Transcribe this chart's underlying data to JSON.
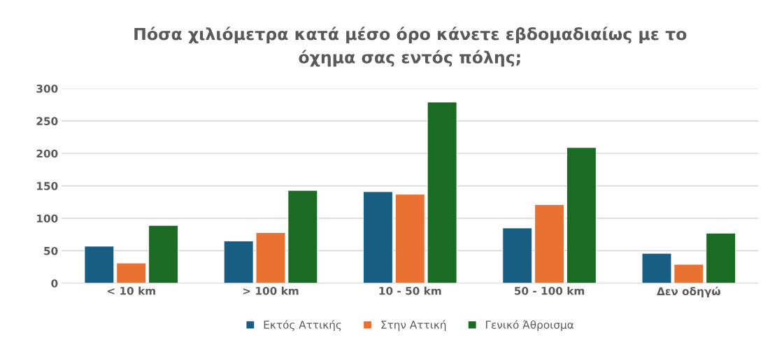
{
  "chart_data": {
    "type": "bar",
    "title": "Πόσα χιλιόμετρα κατά μέσο όρο κάνετε εβδομαδιαίως με το\nόχημα σας εντός πόλης;",
    "categories": [
      "< 10 km",
      "> 100 km",
      "10 - 50 km",
      "50 - 100 km",
      "Δεν οδηγώ"
    ],
    "series": [
      {
        "name": "Εκτός Αττικής",
        "color": "#175e82",
        "values": [
          57,
          65,
          141,
          85,
          46
        ]
      },
      {
        "name": "Στην Αττική",
        "color": "#e97132",
        "values": [
          31,
          78,
          137,
          121,
          29
        ]
      },
      {
        "name": "Γενικό Άθροισμα",
        "color": "#1b6b24",
        "values": [
          89,
          143,
          279,
          209,
          77
        ]
      }
    ],
    "ylim": [
      0,
      300
    ],
    "yticks": [
      0,
      50,
      100,
      150,
      200,
      250,
      300
    ],
    "grid": "y",
    "legend": "bottom"
  }
}
